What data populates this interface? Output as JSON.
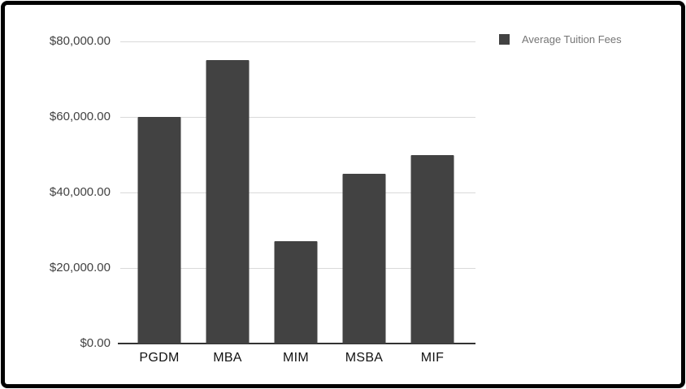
{
  "frame": {
    "background": "#ffffff",
    "border_color": "#000000"
  },
  "legend": {
    "label": "Average Tuition Fees",
    "swatch_color": "#424242",
    "text_color": "#757575",
    "position": "top-right"
  },
  "chart_data": {
    "type": "bar",
    "title": "",
    "xlabel": "",
    "ylabel": "",
    "categories": [
      "PGDM",
      "MBA",
      "MIM",
      "MSBA",
      "MIF"
    ],
    "series": [
      {
        "name": "Average Tuition Fees",
        "values": [
          60000,
          75000,
          27000,
          45000,
          50000
        ]
      }
    ],
    "bar_color": "#424242",
    "ylim": [
      0,
      80000
    ],
    "grid": true,
    "gridline_color": "#dadada",
    "axis_line_color": "#333333",
    "yticks": [
      {
        "value": 0,
        "label": "$0.00"
      },
      {
        "value": 20000,
        "label": "$20,000.00"
      },
      {
        "value": 40000,
        "label": "$40,000.00"
      },
      {
        "value": 60000,
        "label": "$60,000.00"
      },
      {
        "value": 80000,
        "label": "$80,000.00"
      }
    ],
    "ytick_label_color": "#424242",
    "xtick_label_color": "#111111",
    "legend_position": "right"
  }
}
